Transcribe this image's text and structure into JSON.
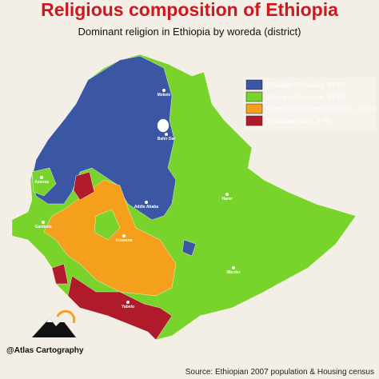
{
  "header": {
    "title": "Religious composition of Ethiopia",
    "subtitle": "Dominant religion in Ethiopia by woreda (district)"
  },
  "legend": [
    {
      "label": "Ethiopian Orthodoxy, 43.5%"
    },
    {
      "label": "Islam (mostly Sunni), 33.9%"
    },
    {
      "label": "Protestantism (mostly P'ent'ay), 18.5%"
    },
    {
      "label": "Traditional faiths, 2.7%"
    }
  ],
  "cities": [
    {
      "label": "Mekele"
    },
    {
      "label": "Bahir Dar"
    },
    {
      "label": "Assosa"
    },
    {
      "label": "Addis Ababa"
    },
    {
      "label": "Harar"
    },
    {
      "label": "Gambela"
    },
    {
      "label": "Hossana"
    },
    {
      "label": "Warder"
    },
    {
      "label": "Yabelo"
    }
  ],
  "credit": "@Atlas Cartography",
  "source": "Source: Ethiopian 2007 population & Housing census"
}
